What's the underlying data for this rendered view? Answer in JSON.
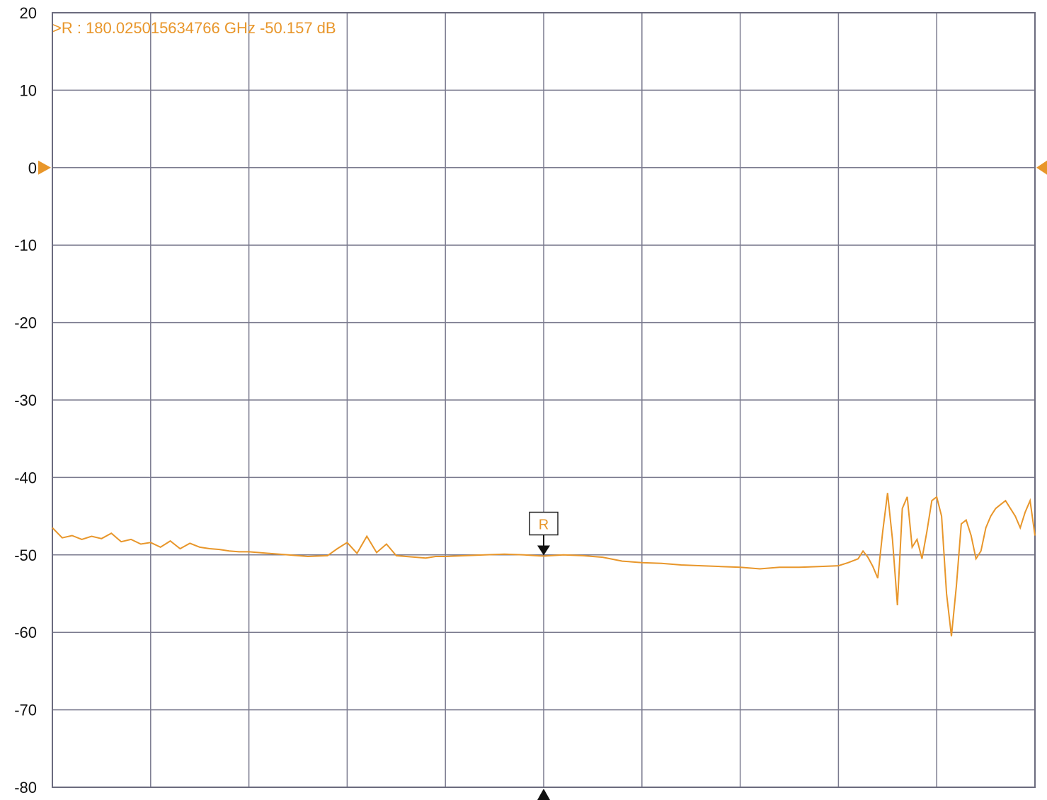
{
  "chart_data": {
    "type": "line",
    "title": "",
    "xlabel": "",
    "ylabel": "",
    "ylim": [
      -80,
      20
    ],
    "xlim": [
      0,
      10
    ],
    "y_ticks": [
      "20",
      "10",
      "0",
      "-10",
      "-20",
      "-30",
      "-40",
      "-50",
      "-60",
      "-70",
      "-80"
    ],
    "grid": true,
    "x_divisions": 10,
    "reference_level": 0,
    "series": [
      {
        "color": "#e8962a",
        "x": [
          0,
          0.1,
          0.2,
          0.3,
          0.4,
          0.5,
          0.6,
          0.7,
          0.8,
          0.9,
          1.0,
          1.1,
          1.2,
          1.3,
          1.4,
          1.5,
          1.6,
          1.7,
          1.8,
          1.9,
          2.0,
          2.2,
          2.4,
          2.6,
          2.8,
          2.9,
          3.0,
          3.1,
          3.2,
          3.3,
          3.4,
          3.5,
          3.6,
          3.7,
          3.8,
          3.9,
          4.0,
          4.2,
          4.4,
          4.6,
          4.8,
          5.0,
          5.2,
          5.4,
          5.6,
          5.8,
          6.0,
          6.2,
          6.4,
          6.6,
          6.8,
          7.0,
          7.2,
          7.4,
          7.6,
          7.8,
          8.0,
          8.1,
          8.2,
          8.25,
          8.3,
          8.35,
          8.4,
          8.45,
          8.5,
          8.55,
          8.6,
          8.65,
          8.7,
          8.75,
          8.8,
          8.85,
          8.9,
          8.95,
          9.0,
          9.05,
          9.1,
          9.15,
          9.2,
          9.25,
          9.3,
          9.35,
          9.4,
          9.45,
          9.5,
          9.55,
          9.6,
          9.65,
          9.7,
          9.75,
          9.8,
          9.85,
          9.9,
          9.95,
          10.0
        ],
        "values": [
          -46.5,
          -47.8,
          -47.5,
          -48.0,
          -47.6,
          -47.9,
          -47.2,
          -48.3,
          -48.0,
          -48.6,
          -48.4,
          -49.0,
          -48.2,
          -49.2,
          -48.5,
          -49.0,
          -49.2,
          -49.3,
          -49.5,
          -49.6,
          -49.6,
          -49.8,
          -50.0,
          -50.2,
          -50.1,
          -49.2,
          -48.4,
          -49.8,
          -47.6,
          -49.7,
          -48.6,
          -50.1,
          -50.2,
          -50.3,
          -50.4,
          -50.2,
          -50.2,
          -50.1,
          -50.0,
          -49.9,
          -50.0,
          -50.157,
          -50.0,
          -50.1,
          -50.3,
          -50.8,
          -51.0,
          -51.1,
          -51.3,
          -51.4,
          -51.5,
          -51.6,
          -51.8,
          -51.6,
          -51.6,
          -51.5,
          -51.4,
          -51.0,
          -50.5,
          -49.5,
          -50.3,
          -51.5,
          -53.0,
          -47.0,
          -42.0,
          -48.0,
          -56.5,
          -44.0,
          -42.5,
          -49.0,
          -48.0,
          -50.5,
          -47.0,
          -43.0,
          -42.5,
          -45.0,
          -55.0,
          -60.5,
          -54.0,
          -46.0,
          -45.5,
          -47.5,
          -50.5,
          -49.5,
          -46.5,
          -45.0,
          -44.0,
          -43.5,
          -43.0,
          -44.0,
          -45.0,
          -46.5,
          -44.5,
          -43.0,
          -47.5
        ]
      }
    ],
    "marker": {
      "label": "R",
      "x": 5.0,
      "frequency": "180.025015634766 GHz",
      "value": -50.157,
      "readout": ">R :  180.025015634766 GHz  -50.157  dB"
    }
  }
}
